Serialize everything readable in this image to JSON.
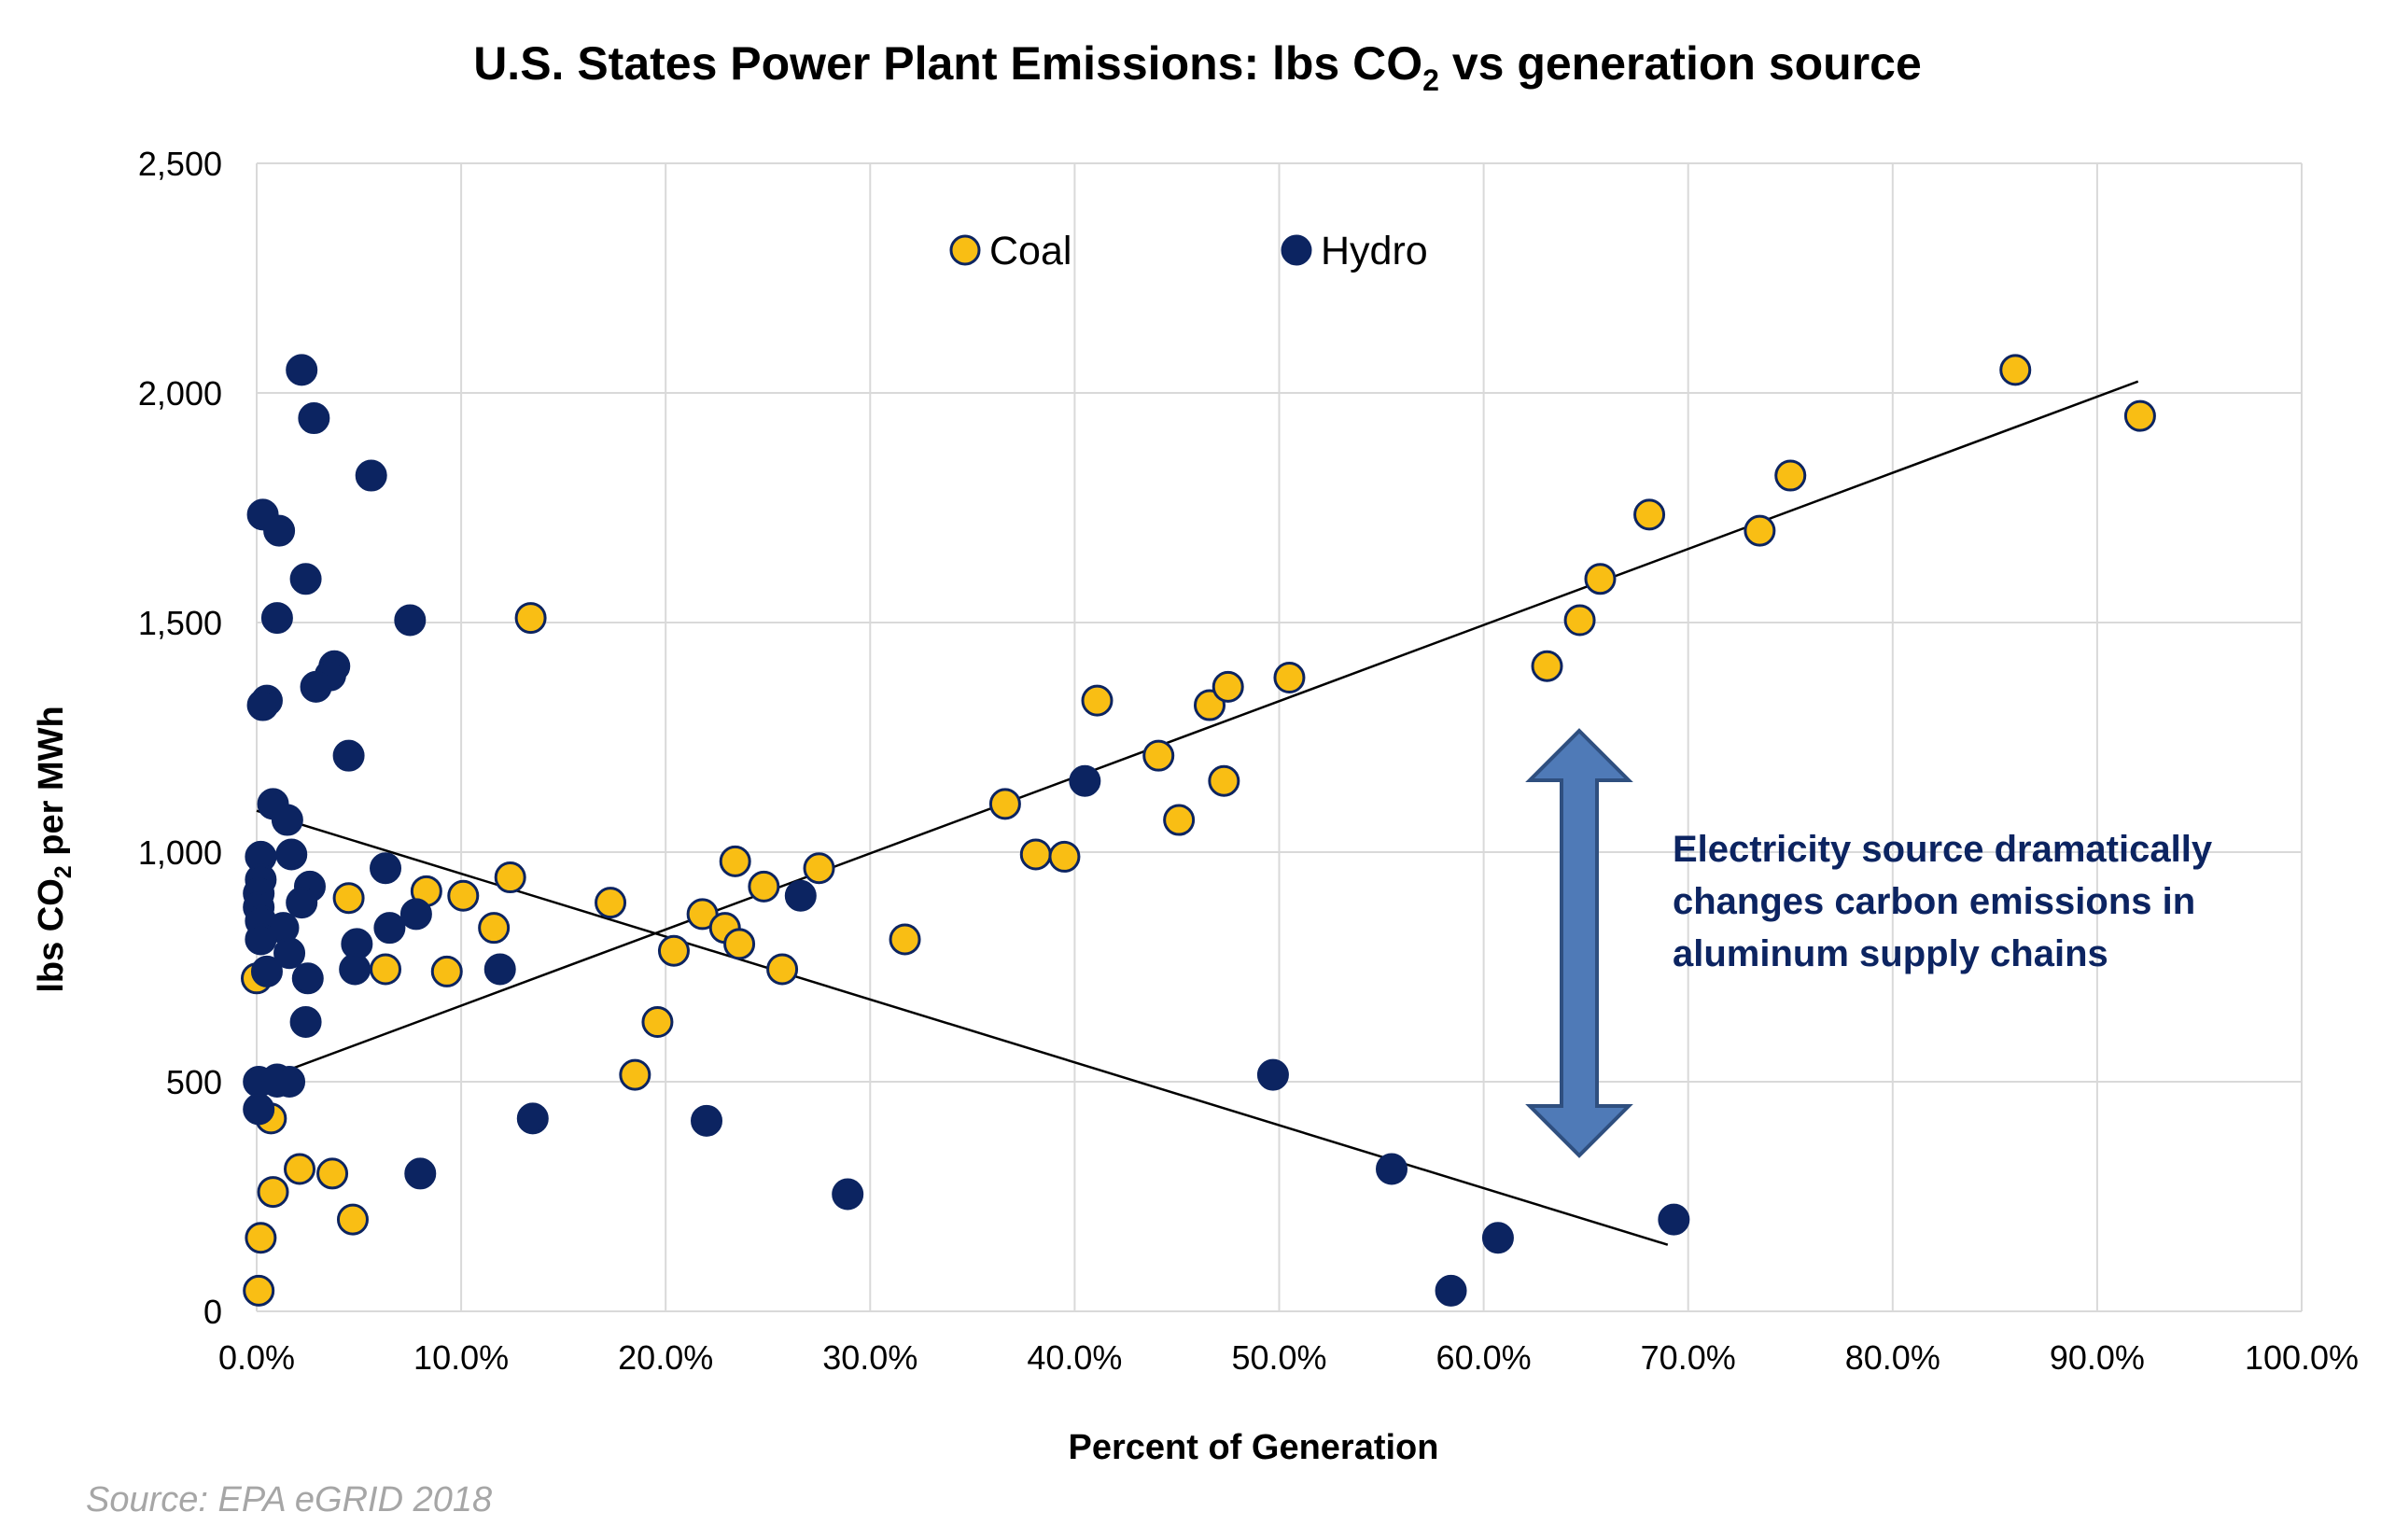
{
  "chart_data": {
    "type": "scatter",
    "title": {
      "prefix": "U.S. States Power Plant Emissions: lbs CO",
      "subscript": "2",
      "suffix": " vs generation source"
    },
    "xlabel": "Percent of Generation",
    "ylabel": {
      "prefix": "lbs CO",
      "subscript": "2",
      "suffix": " per MWh"
    },
    "xlim": [
      0,
      1.0
    ],
    "ylim": [
      0,
      2500
    ],
    "x_ticks": [
      0,
      0.1,
      0.2,
      0.3,
      0.4,
      0.5,
      0.6,
      0.7,
      0.8,
      0.9,
      1.0
    ],
    "x_tick_labels": [
      "0.0%",
      "10.0%",
      "20.0%",
      "30.0%",
      "40.0%",
      "50.0%",
      "60.0%",
      "70.0%",
      "80.0%",
      "90.0%",
      "100.0%"
    ],
    "y_ticks": [
      0,
      500,
      1000,
      1500,
      2000,
      2500
    ],
    "y_tick_labels": [
      "0",
      "500",
      "1,000",
      "1,500",
      "2,000",
      "2,500"
    ],
    "grid": true,
    "legend_position": "top-center",
    "colors": {
      "coal": "#F9BE14",
      "hydro": "#0C2461",
      "marker_edge": "#0C2461",
      "grid": "#D9D9D9",
      "trendline": "#000000",
      "arrow_fill": "#4F7AB7",
      "arrow_edge": "#2F4F7F",
      "annotation": "#0C2461",
      "source": "#A6A6A6"
    },
    "series": [
      {
        "name": "Coal",
        "color": "#F9BE14",
        "points": [
          [
            0.001,
            45
          ],
          [
            0.002,
            160
          ],
          [
            0.0,
            725
          ],
          [
            0.007,
            420
          ],
          [
            0.008,
            260
          ],
          [
            0.01,
            500
          ],
          [
            0.021,
            310
          ],
          [
            0.037,
            300
          ],
          [
            0.047,
            200
          ],
          [
            0.045,
            900
          ],
          [
            0.063,
            745
          ],
          [
            0.083,
            915
          ],
          [
            0.093,
            740
          ],
          [
            0.101,
            905
          ],
          [
            0.116,
            835
          ],
          [
            0.124,
            945
          ],
          [
            0.134,
            1510
          ],
          [
            0.173,
            890
          ],
          [
            0.185,
            515
          ],
          [
            0.196,
            630
          ],
          [
            0.204,
            785
          ],
          [
            0.218,
            865
          ],
          [
            0.229,
            835
          ],
          [
            0.234,
            980
          ],
          [
            0.236,
            800
          ],
          [
            0.248,
            925
          ],
          [
            0.257,
            745
          ],
          [
            0.275,
            965
          ],
          [
            0.317,
            810
          ],
          [
            0.366,
            1105
          ],
          [
            0.381,
            995
          ],
          [
            0.395,
            990
          ],
          [
            0.411,
            1330
          ],
          [
            0.441,
            1210
          ],
          [
            0.451,
            1070
          ],
          [
            0.466,
            1320
          ],
          [
            0.473,
            1155
          ],
          [
            0.475,
            1360
          ],
          [
            0.505,
            1380
          ],
          [
            0.631,
            1405
          ],
          [
            0.647,
            1505
          ],
          [
            0.657,
            1595
          ],
          [
            0.681,
            1735
          ],
          [
            0.735,
            1700
          ],
          [
            0.75,
            1820
          ],
          [
            0.86,
            2050
          ],
          [
            0.921,
            1950
          ]
        ]
      },
      {
        "name": "Hydro",
        "color": "#0C2461",
        "points": [
          [
            0.022,
            2050
          ],
          [
            0.028,
            1945
          ],
          [
            0.056,
            1820
          ],
          [
            0.003,
            1735
          ],
          [
            0.011,
            1700
          ],
          [
            0.024,
            1595
          ],
          [
            0.075,
            1505
          ],
          [
            0.01,
            1510
          ],
          [
            0.038,
            1405
          ],
          [
            0.036,
            1385
          ],
          [
            0.029,
            1360
          ],
          [
            0.005,
            1330
          ],
          [
            0.003,
            1320
          ],
          [
            0.045,
            1210
          ],
          [
            0.008,
            1105
          ],
          [
            0.015,
            1070
          ],
          [
            0.002,
            990
          ],
          [
            0.017,
            995
          ],
          [
            0.063,
            965
          ],
          [
            0.002,
            940
          ],
          [
            0.026,
            925
          ],
          [
            0.001,
            910
          ],
          [
            0.022,
            890
          ],
          [
            0.001,
            880
          ],
          [
            0.078,
            865
          ],
          [
            0.002,
            850
          ],
          [
            0.013,
            835
          ],
          [
            0.065,
            835
          ],
          [
            0.002,
            810
          ],
          [
            0.049,
            800
          ],
          [
            0.016,
            780
          ],
          [
            0.005,
            740
          ],
          [
            0.048,
            745
          ],
          [
            0.119,
            745
          ],
          [
            0.025,
            725
          ],
          [
            0.024,
            630
          ],
          [
            0.001,
            500
          ],
          [
            0.01,
            505
          ],
          [
            0.016,
            500
          ],
          [
            0.001,
            440
          ],
          [
            0.135,
            420
          ],
          [
            0.22,
            415
          ],
          [
            0.08,
            300
          ],
          [
            0.289,
            255
          ],
          [
            0.266,
            905
          ],
          [
            0.405,
            1155
          ],
          [
            0.497,
            515
          ],
          [
            0.555,
            310
          ],
          [
            0.607,
            160
          ],
          [
            0.584,
            45
          ],
          [
            0.693,
            200
          ]
        ]
      }
    ],
    "trendlines": [
      {
        "series": "Coal",
        "x": [
          0.0,
          0.92
        ],
        "y": [
          500,
          2025
        ]
      },
      {
        "series": "Hydro",
        "x": [
          0.0,
          0.69
        ],
        "y": [
          1090,
          145
        ]
      }
    ],
    "annotation": {
      "lines": [
        "Electricity source dramatically",
        "changes carbon emissions in",
        "aluminum supply chains"
      ]
    },
    "source": "Source: EPA eGRID 2018"
  }
}
